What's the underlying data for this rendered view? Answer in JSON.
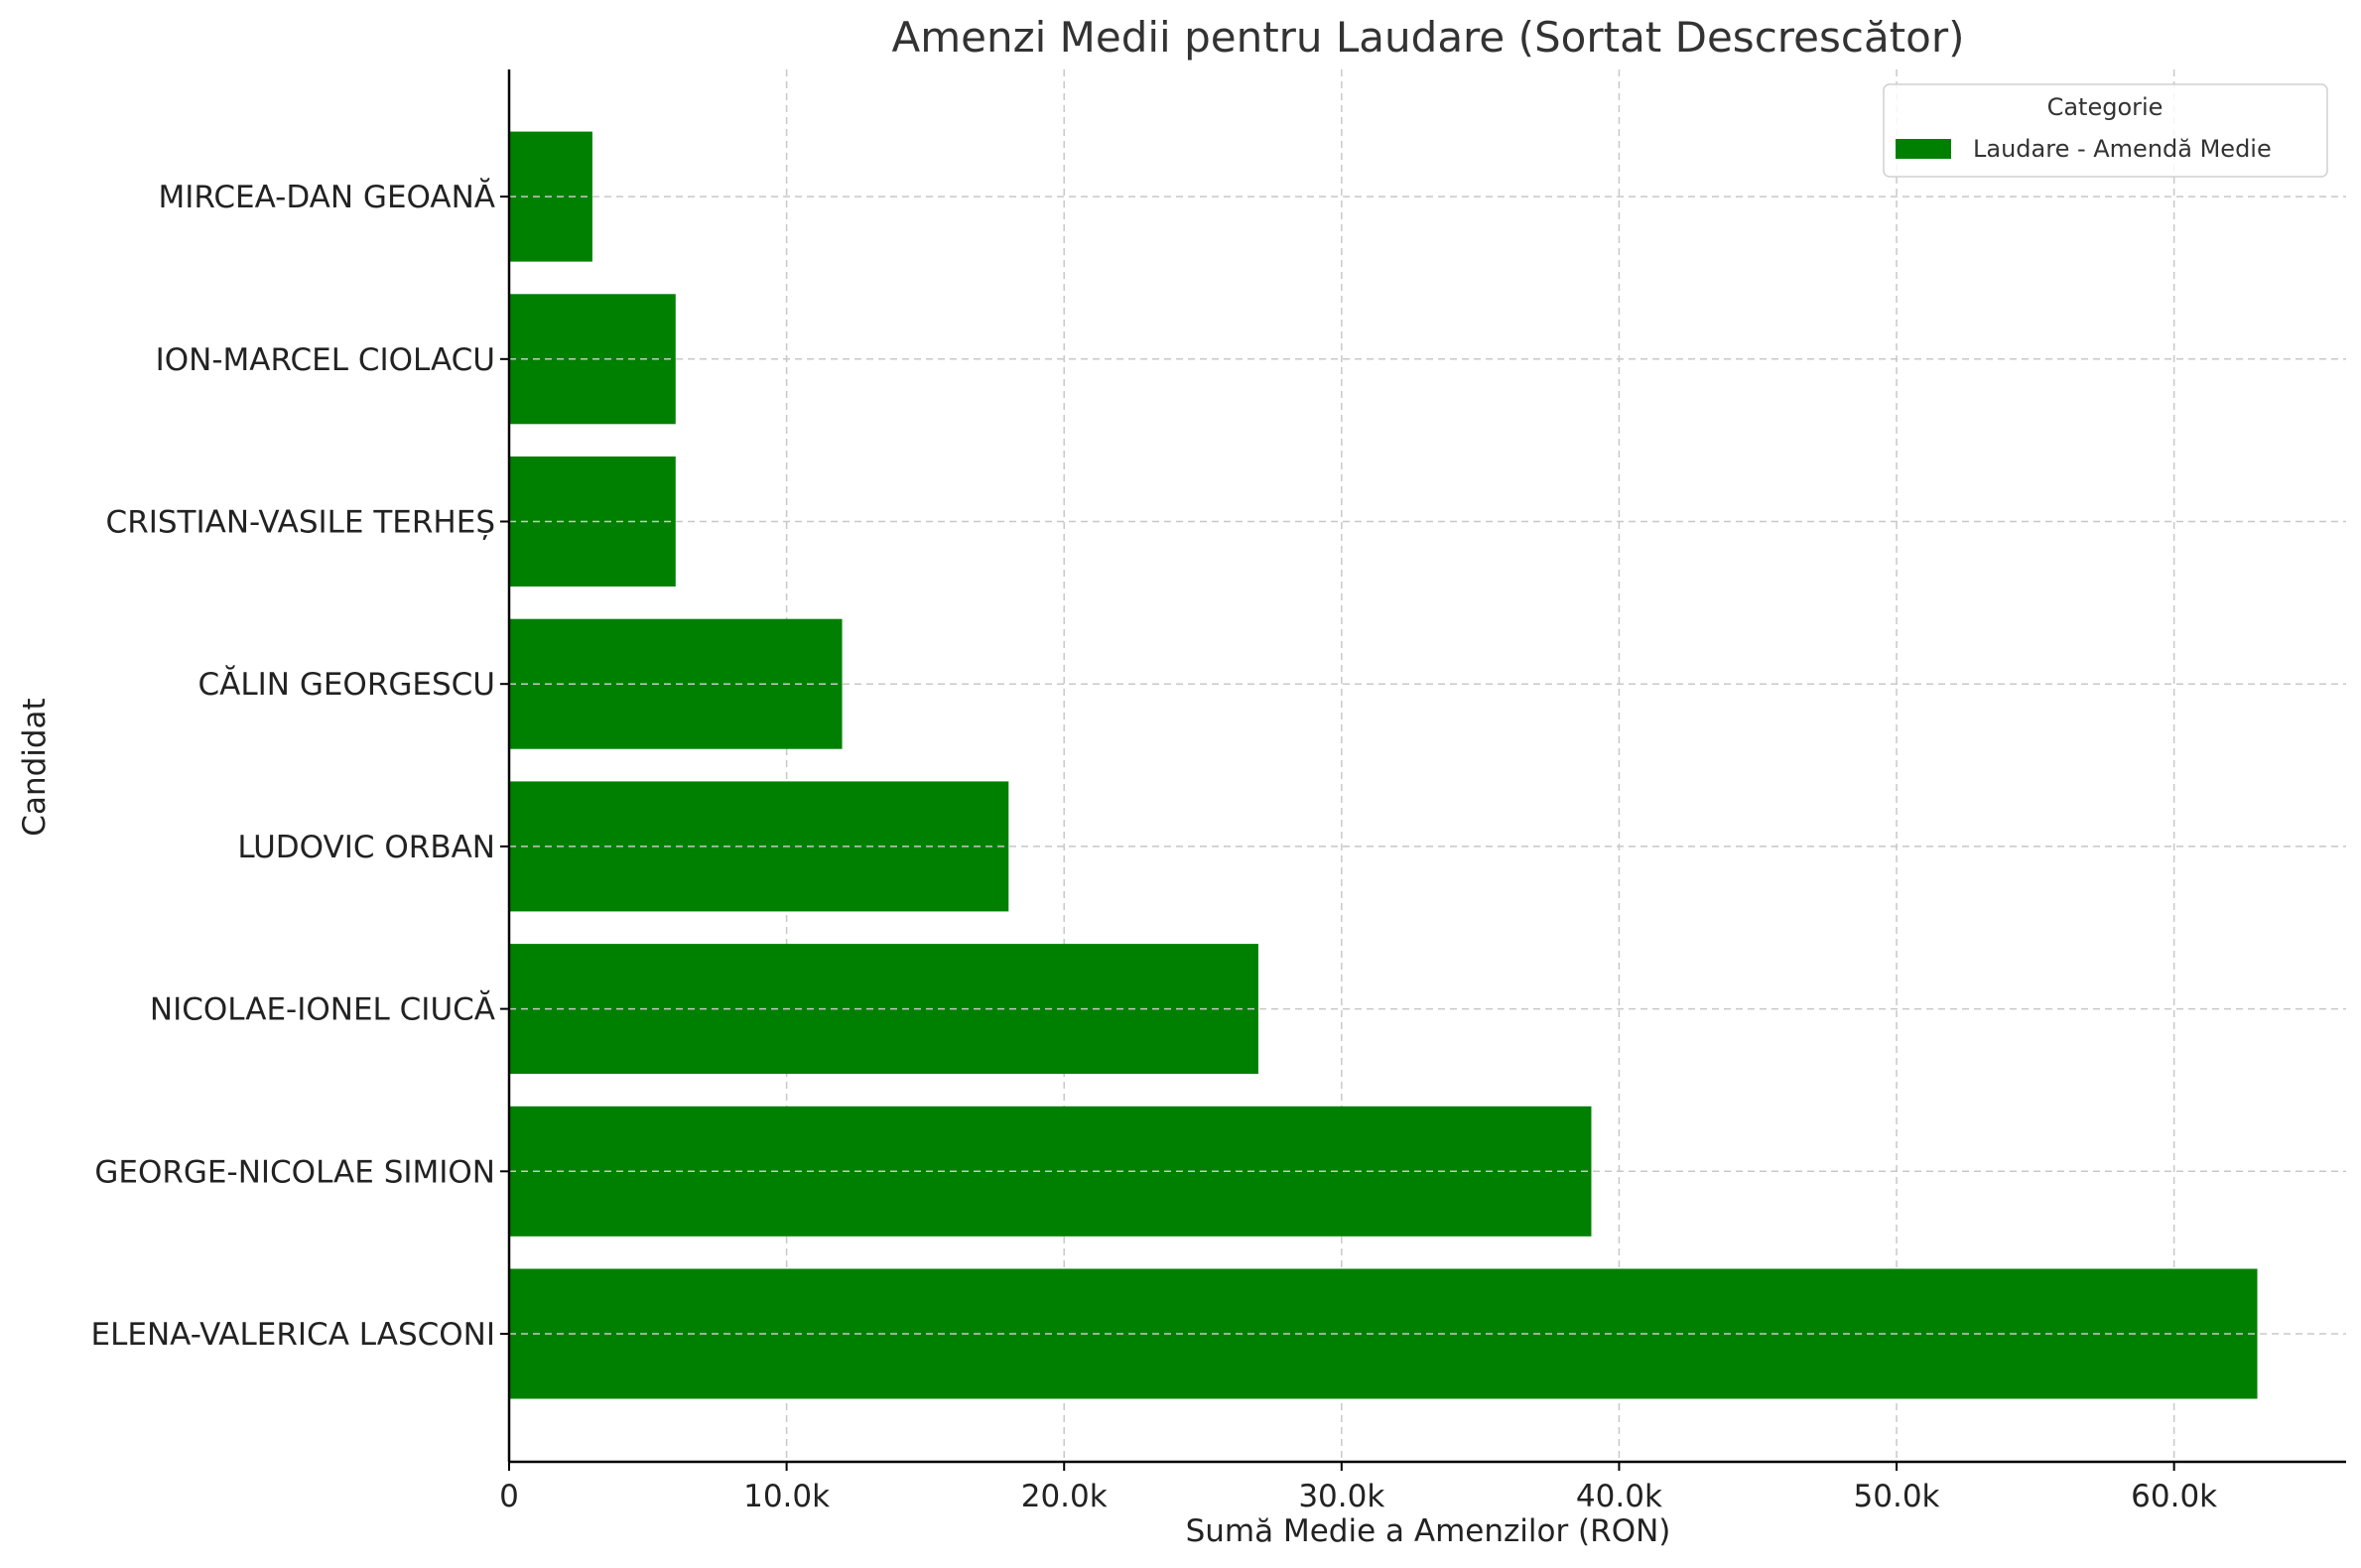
{
  "chart_data": {
    "type": "bar",
    "orientation": "horizontal",
    "title": "Amenzi Medii pentru Laudare (Sortat Descrescător)",
    "xlabel": "Sumă Medie a Amenzilor (RON)",
    "ylabel": "Candidat",
    "categories": [
      "ELENA-VALERICA LASCONI",
      "GEORGE-NICOLAE SIMION",
      "NICOLAE-IONEL CIUCĂ",
      "LUDOVIC ORBAN",
      "CĂLIN GEORGESCU",
      "CRISTIAN-VASILE TERHEȘ",
      "ION-MARCEL CIOLACU",
      "MIRCEA-DAN GEOANĂ"
    ],
    "series": [
      {
        "name": "Laudare - Amendă Medie",
        "color": "#008000",
        "values": [
          63000,
          39000,
          27000,
          18000,
          12000,
          6000,
          6000,
          3000
        ]
      }
    ],
    "xlim": [
      0,
      66200
    ],
    "xticks": [
      0,
      10000,
      20000,
      30000,
      40000,
      50000,
      60000
    ],
    "xtick_labels": [
      "0",
      "10.0k",
      "20.0k",
      "30.0k",
      "40.0k",
      "50.0k",
      "60.0k"
    ],
    "grid": true,
    "legend": {
      "title": "Categorie",
      "placement": "top-right",
      "entries": [
        "Laudare - Amendă Medie"
      ]
    }
  }
}
